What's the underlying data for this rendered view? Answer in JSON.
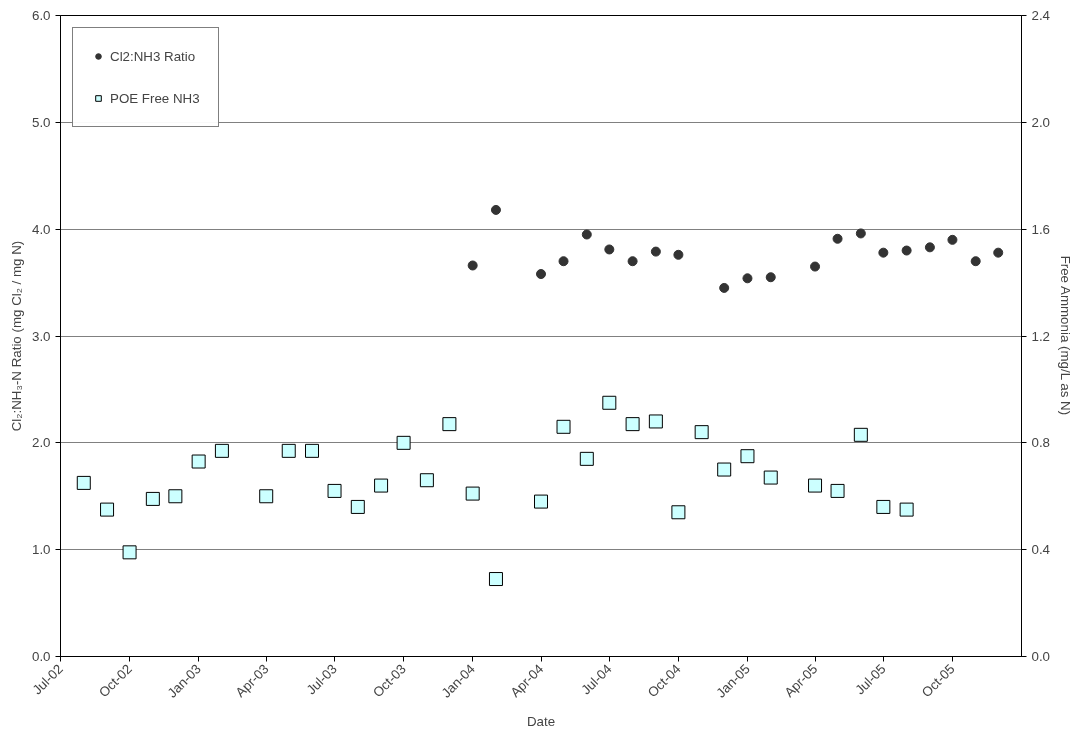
{
  "chart_data": {
    "type": "scatter",
    "xlabel": "Date",
    "ylabel": "Cl₂:NH₃-N Ratio (mg Cl₂ / mg N)",
    "y2label": "Free Ammonia (mg/L as N)",
    "xlim": [
      "2002-07",
      "2006-01"
    ],
    "xticks": [
      {
        "value": "2002-07",
        "label": "Jul-02"
      },
      {
        "value": "2002-10",
        "label": "Oct-02"
      },
      {
        "value": "2003-01",
        "label": "Jan-03"
      },
      {
        "value": "2003-04",
        "label": "Apr-03"
      },
      {
        "value": "2003-07",
        "label": "Jul-03"
      },
      {
        "value": "2003-10",
        "label": "Oct-03"
      },
      {
        "value": "2004-01",
        "label": "Jan-04"
      },
      {
        "value": "2004-04",
        "label": "Apr-04"
      },
      {
        "value": "2004-07",
        "label": "Jul-04"
      },
      {
        "value": "2004-10",
        "label": "Oct-04"
      },
      {
        "value": "2005-01",
        "label": "Jan-05"
      },
      {
        "value": "2005-04",
        "label": "Apr-05"
      },
      {
        "value": "2005-07",
        "label": "Jul-05"
      },
      {
        "value": "2005-10",
        "label": "Oct-05"
      }
    ],
    "ylim": [
      0,
      6
    ],
    "yticks": [
      {
        "value": 0,
        "label": "0.0"
      },
      {
        "value": 1,
        "label": "1.0"
      },
      {
        "value": 2,
        "label": "2.0"
      },
      {
        "value": 3,
        "label": "3.0"
      },
      {
        "value": 4,
        "label": "4.0"
      },
      {
        "value": 5,
        "label": "5.0"
      },
      {
        "value": 6,
        "label": "6.0"
      }
    ],
    "y2lim": [
      0,
      2.4
    ],
    "y2ticks": [
      {
        "value": 0,
        "label": "0.0"
      },
      {
        "value": 0.4,
        "label": "0.4"
      },
      {
        "value": 0.8,
        "label": "0.8"
      },
      {
        "value": 1.2,
        "label": "1.2"
      },
      {
        "value": 1.6,
        "label": "1.6"
      },
      {
        "value": 2.0,
        "label": "2.0"
      },
      {
        "value": 2.4,
        "label": "2.4"
      }
    ],
    "grid": "y",
    "legend": "top left",
    "series": [
      {
        "name": "Cl2:NH3 Ratio",
        "color": "#333333",
        "marker": "circle",
        "x": [
          "2004-01",
          "2004-02",
          "2004-04",
          "2004-05",
          "2004-06",
          "2004-07",
          "2004-08",
          "2004-09",
          "2004-10",
          "2004-12",
          "2005-01",
          "2005-02",
          "2005-04",
          "2005-05",
          "2005-06",
          "2005-07",
          "2005-08",
          "2005-09",
          "2005-10",
          "2005-11",
          "2005-12"
        ],
        "values": [
          3.66,
          4.18,
          3.58,
          3.7,
          3.95,
          3.81,
          3.7,
          3.79,
          3.76,
          3.45,
          3.54,
          3.55,
          3.65,
          3.91,
          3.96,
          3.78,
          3.8,
          3.83,
          3.9,
          3.7,
          3.78
        ]
      },
      {
        "name": "POE Free NH3",
        "color": "#ccffff",
        "marker": "square",
        "axis": "y2",
        "x": [
          "2002-08",
          "2002-09",
          "2002-10",
          "2002-11",
          "2002-12",
          "2003-01",
          "2003-02",
          "2003-04",
          "2003-05",
          "2003-06",
          "2003-07",
          "2003-08",
          "2003-09",
          "2003-10",
          "2003-11",
          "2003-12",
          "2004-01",
          "2004-02",
          "2004-04",
          "2004-05",
          "2004-06",
          "2004-07",
          "2004-08",
          "2004-09",
          "2004-10",
          "2004-11",
          "2004-12",
          "2005-01",
          "2005-02",
          "2005-04",
          "2005-05",
          "2005-06",
          "2005-07",
          "2005-08"
        ],
        "values": [
          0.65,
          0.55,
          0.39,
          0.59,
          0.6,
          0.73,
          0.77,
          0.6,
          0.77,
          0.77,
          0.62,
          0.56,
          0.64,
          0.8,
          0.66,
          0.87,
          0.61,
          0.29,
          0.58,
          0.86,
          0.74,
          0.95,
          0.87,
          0.88,
          0.54,
          0.84,
          0.7,
          0.75,
          0.67,
          0.64,
          0.62,
          0.83,
          0.56,
          0.55
        ]
      }
    ]
  }
}
